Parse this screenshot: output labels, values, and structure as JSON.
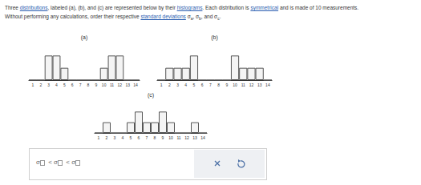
{
  "question": {
    "lines": [
      [
        {
          "text": "Three "
        },
        {
          "text": "distributions",
          "link": true
        },
        {
          "text": ", labeled (a), (b), and (c) are represented below by their "
        },
        {
          "text": "histograms",
          "link": true
        },
        {
          "text": ". Each distribution is "
        },
        {
          "text": "symmetrical",
          "link": true
        },
        {
          "text": " and is made of 10 measurements."
        }
      ],
      [
        {
          "text": "Without performing any calculations, order their respective "
        },
        {
          "text": "standard deviations",
          "link": true
        },
        {
          "text": " σ"
        },
        {
          "sub": "a"
        },
        {
          "text": ", σ"
        },
        {
          "sub": "b"
        },
        {
          "text": ", and σ"
        },
        {
          "sub": "c"
        },
        {
          "text": "."
        }
      ]
    ]
  },
  "chart_data": [
    {
      "type": "histogram",
      "title": "(a)",
      "categories": [
        "1",
        "2",
        "3",
        "4",
        "5",
        "6",
        "7",
        "8",
        "9",
        "10",
        "11",
        "12",
        "13",
        "14"
      ],
      "values": [
        0,
        0,
        2,
        2,
        1,
        0,
        0,
        0,
        0,
        1,
        2,
        2,
        0,
        0
      ],
      "ylim": [
        0,
        3
      ],
      "tick_labels": "x",
      "color": "#f4f4f4"
    },
    {
      "type": "histogram",
      "title": "(b)",
      "categories": [
        "1",
        "2",
        "3",
        "4",
        "5",
        "6",
        "7",
        "8",
        "9",
        "10",
        "11",
        "12",
        "13",
        "14"
      ],
      "values": [
        0,
        1,
        1,
        1,
        2,
        0,
        0,
        0,
        0,
        2,
        1,
        1,
        1,
        0
      ],
      "ylim": [
        0,
        3
      ],
      "tick_labels": "x",
      "color": "#f4f4f4"
    },
    {
      "type": "histogram",
      "title": "(c)",
      "categories": [
        "1",
        "2",
        "3",
        "4",
        "5",
        "6",
        "7",
        "8",
        "9",
        "10",
        "11",
        "12",
        "13",
        "14"
      ],
      "values": [
        0,
        1,
        0,
        0,
        1,
        2,
        1,
        1,
        2,
        1,
        0,
        0,
        1,
        0
      ],
      "ylim": [
        0,
        3
      ],
      "tick_labels": "x",
      "color": "#f4f4f4"
    }
  ],
  "answer": {
    "symbol": "σ",
    "separator": "<",
    "slots": 3
  }
}
